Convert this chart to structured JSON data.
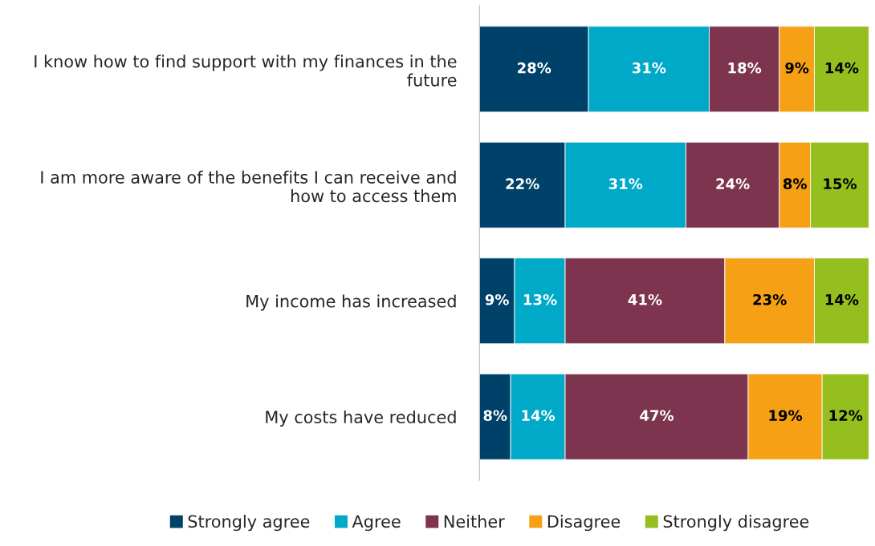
{
  "chart_data": {
    "type": "bar",
    "orientation": "horizontal",
    "stacked": true,
    "legend": "bottom",
    "grid": false,
    "categories": [
      "I know how to find support with my finances in the future",
      "I am more aware of the benefits I can receive and how to access them",
      "My income has increased",
      "My costs have reduced"
    ],
    "series": [
      {
        "name": "Strongly agree",
        "color": "#00416a",
        "values": [
          28,
          22,
          9,
          8
        ],
        "value_labels": [
          "28%",
          "22%",
          "9%",
          "8%"
        ]
      },
      {
        "name": "Agree",
        "color": "#00a9c8",
        "values": [
          31,
          31,
          13,
          14
        ],
        "value_labels": [
          "31%",
          "31%",
          "13%",
          "14%"
        ]
      },
      {
        "name": "Neither",
        "color": "#7d354f",
        "values": [
          18,
          24,
          41,
          47
        ],
        "value_labels": [
          "18%",
          "24%",
          "41%",
          "47%"
        ]
      },
      {
        "name": "Disagree",
        "color": "#f5a015",
        "values": [
          9,
          8,
          23,
          19
        ],
        "value_labels": [
          "9%",
          "8%",
          "23%",
          "19%"
        ]
      },
      {
        "name": "Strongly disagree",
        "color": "#95bf1e",
        "values": [
          14,
          15,
          14,
          12
        ],
        "value_labels": [
          "14%",
          "15%",
          "14%",
          "12%"
        ]
      }
    ]
  }
}
